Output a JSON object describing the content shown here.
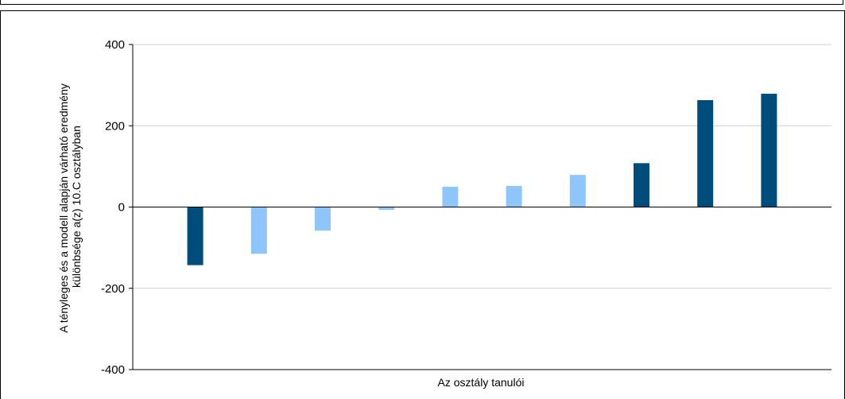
{
  "chart_data": {
    "type": "bar",
    "title": "",
    "xlabel": "Az osztály tanulói",
    "ylabel_lines": [
      "A tényleges és a modell alapján várható eredmény",
      "különbsége a(z) 10.C osztályban"
    ],
    "ylim": [
      -400,
      400
    ],
    "yticks": [
      {
        "value": -400,
        "label": "-400"
      },
      {
        "value": -200,
        "label": "-200"
      },
      {
        "value": 0,
        "label": "0"
      },
      {
        "value": 200,
        "label": "200"
      },
      {
        "value": 400,
        "label": "400"
      }
    ],
    "grid": true,
    "legend": "none",
    "colors": {
      "dark": "#004c7a",
      "light": "#8ec5fb",
      "grid": "#cfcfcf"
    },
    "values": [
      -143,
      -115,
      -58,
      -7,
      50,
      52,
      79,
      108,
      263,
      279
    ],
    "bar_colors": [
      "dark",
      "light",
      "light",
      "light",
      "light",
      "light",
      "light",
      "dark",
      "dark",
      "dark"
    ]
  }
}
